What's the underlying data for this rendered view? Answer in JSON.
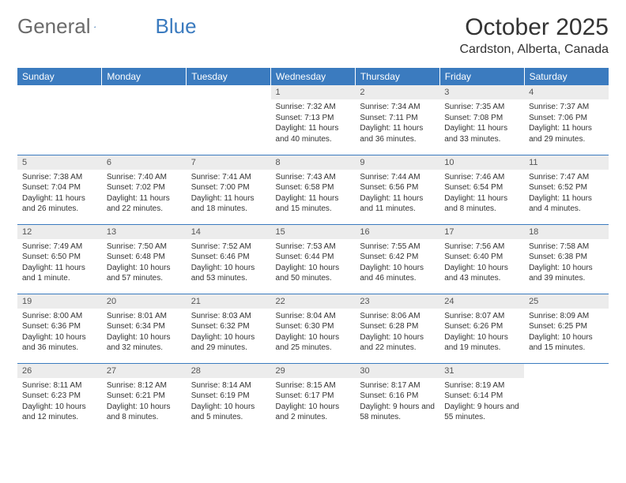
{
  "logo": {
    "text1": "General",
    "text2": "Blue"
  },
  "title": "October 2025",
  "location": "Cardston, Alberta, Canada",
  "colors": {
    "header_bg": "#3b7bbf",
    "daynum_bg": "#ececec",
    "border": "#3b7bbf"
  },
  "weekdays": [
    "Sunday",
    "Monday",
    "Tuesday",
    "Wednesday",
    "Thursday",
    "Friday",
    "Saturday"
  ],
  "weeks": [
    [
      null,
      null,
      null,
      {
        "n": "1",
        "sr": "7:32 AM",
        "ss": "7:13 PM",
        "dl": "11 hours and 40 minutes."
      },
      {
        "n": "2",
        "sr": "7:34 AM",
        "ss": "7:11 PM",
        "dl": "11 hours and 36 minutes."
      },
      {
        "n": "3",
        "sr": "7:35 AM",
        "ss": "7:08 PM",
        "dl": "11 hours and 33 minutes."
      },
      {
        "n": "4",
        "sr": "7:37 AM",
        "ss": "7:06 PM",
        "dl": "11 hours and 29 minutes."
      }
    ],
    [
      {
        "n": "5",
        "sr": "7:38 AM",
        "ss": "7:04 PM",
        "dl": "11 hours and 26 minutes."
      },
      {
        "n": "6",
        "sr": "7:40 AM",
        "ss": "7:02 PM",
        "dl": "11 hours and 22 minutes."
      },
      {
        "n": "7",
        "sr": "7:41 AM",
        "ss": "7:00 PM",
        "dl": "11 hours and 18 minutes."
      },
      {
        "n": "8",
        "sr": "7:43 AM",
        "ss": "6:58 PM",
        "dl": "11 hours and 15 minutes."
      },
      {
        "n": "9",
        "sr": "7:44 AM",
        "ss": "6:56 PM",
        "dl": "11 hours and 11 minutes."
      },
      {
        "n": "10",
        "sr": "7:46 AM",
        "ss": "6:54 PM",
        "dl": "11 hours and 8 minutes."
      },
      {
        "n": "11",
        "sr": "7:47 AM",
        "ss": "6:52 PM",
        "dl": "11 hours and 4 minutes."
      }
    ],
    [
      {
        "n": "12",
        "sr": "7:49 AM",
        "ss": "6:50 PM",
        "dl": "11 hours and 1 minute."
      },
      {
        "n": "13",
        "sr": "7:50 AM",
        "ss": "6:48 PM",
        "dl": "10 hours and 57 minutes."
      },
      {
        "n": "14",
        "sr": "7:52 AM",
        "ss": "6:46 PM",
        "dl": "10 hours and 53 minutes."
      },
      {
        "n": "15",
        "sr": "7:53 AM",
        "ss": "6:44 PM",
        "dl": "10 hours and 50 minutes."
      },
      {
        "n": "16",
        "sr": "7:55 AM",
        "ss": "6:42 PM",
        "dl": "10 hours and 46 minutes."
      },
      {
        "n": "17",
        "sr": "7:56 AM",
        "ss": "6:40 PM",
        "dl": "10 hours and 43 minutes."
      },
      {
        "n": "18",
        "sr": "7:58 AM",
        "ss": "6:38 PM",
        "dl": "10 hours and 39 minutes."
      }
    ],
    [
      {
        "n": "19",
        "sr": "8:00 AM",
        "ss": "6:36 PM",
        "dl": "10 hours and 36 minutes."
      },
      {
        "n": "20",
        "sr": "8:01 AM",
        "ss": "6:34 PM",
        "dl": "10 hours and 32 minutes."
      },
      {
        "n": "21",
        "sr": "8:03 AM",
        "ss": "6:32 PM",
        "dl": "10 hours and 29 minutes."
      },
      {
        "n": "22",
        "sr": "8:04 AM",
        "ss": "6:30 PM",
        "dl": "10 hours and 25 minutes."
      },
      {
        "n": "23",
        "sr": "8:06 AM",
        "ss": "6:28 PM",
        "dl": "10 hours and 22 minutes."
      },
      {
        "n": "24",
        "sr": "8:07 AM",
        "ss": "6:26 PM",
        "dl": "10 hours and 19 minutes."
      },
      {
        "n": "25",
        "sr": "8:09 AM",
        "ss": "6:25 PM",
        "dl": "10 hours and 15 minutes."
      }
    ],
    [
      {
        "n": "26",
        "sr": "8:11 AM",
        "ss": "6:23 PM",
        "dl": "10 hours and 12 minutes."
      },
      {
        "n": "27",
        "sr": "8:12 AM",
        "ss": "6:21 PM",
        "dl": "10 hours and 8 minutes."
      },
      {
        "n": "28",
        "sr": "8:14 AM",
        "ss": "6:19 PM",
        "dl": "10 hours and 5 minutes."
      },
      {
        "n": "29",
        "sr": "8:15 AM",
        "ss": "6:17 PM",
        "dl": "10 hours and 2 minutes."
      },
      {
        "n": "30",
        "sr": "8:17 AM",
        "ss": "6:16 PM",
        "dl": "9 hours and 58 minutes."
      },
      {
        "n": "31",
        "sr": "8:19 AM",
        "ss": "6:14 PM",
        "dl": "9 hours and 55 minutes."
      },
      null
    ]
  ],
  "labels": {
    "sunrise": "Sunrise:",
    "sunset": "Sunset:",
    "daylight": "Daylight:"
  }
}
